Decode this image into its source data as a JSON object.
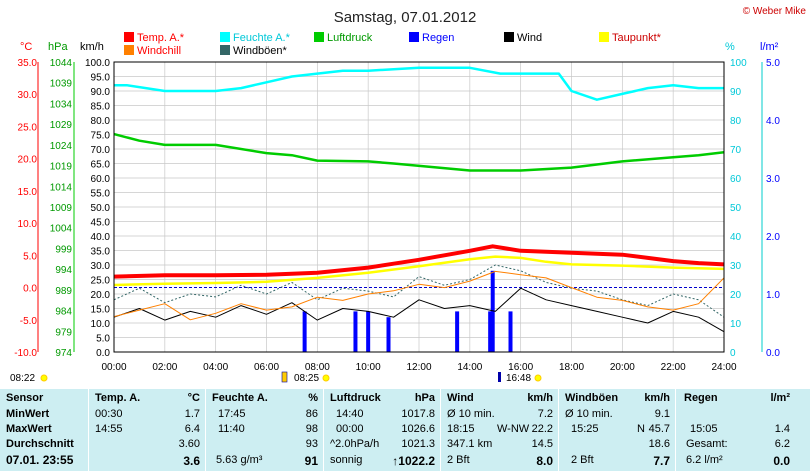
{
  "header": {
    "title": "Samstag, 07.01.2012",
    "credit": "© Weber Mike"
  },
  "colors": {
    "temp": "#ff0000",
    "humidity": "#00ffff",
    "pressure": "#00cc00",
    "rain": "#0000ff",
    "wind": "#000000",
    "dewpoint": "#ffff00",
    "windchill": "#ff8000",
    "gust": "#336666",
    "table_bg": "#cdeef2"
  },
  "axes_units": {
    "temp": "°C",
    "pressure": "hPa",
    "wind": "km/h",
    "humidity": "%",
    "rain": "l/m²"
  },
  "chart_data": {
    "type": "line",
    "title": "Samstag, 07.01.2012",
    "x_axis": {
      "ticks": [
        "00:00",
        "02:00",
        "04:00",
        "06:00",
        "08:00",
        "10:00",
        "12:00",
        "14:00",
        "16:00",
        "18:00",
        "20:00",
        "22:00",
        "24:00"
      ],
      "range_hours": [
        0,
        24
      ]
    },
    "y_axes": {
      "temp": {
        "label": "°C",
        "range": [
          -10,
          35
        ],
        "ticks": [
          "35.0",
          "30.0",
          "25.0",
          "20.0",
          "15.0",
          "10.0",
          "5.0",
          "0.0",
          "-5.0",
          "-10.0"
        ]
      },
      "pressure": {
        "label": "hPa",
        "range": [
          974,
          1044
        ],
        "ticks": [
          "1044",
          "1039",
          "1034",
          "1029",
          "1024",
          "1019",
          "1014",
          "1009",
          "1004",
          "999",
          "994",
          "989",
          "984",
          "979",
          "974"
        ]
      },
      "wind": {
        "label": "km/h",
        "range": [
          0,
          100
        ],
        "ticks": [
          "100.0",
          "95.0",
          "90.0",
          "85.0",
          "80.0",
          "75.0",
          "70.0",
          "65.0",
          "60.0",
          "55.0",
          "50.0",
          "45.0",
          "40.0",
          "35.0",
          "30.0",
          "25.0",
          "20.0",
          "15.0",
          "10.0",
          "5.0",
          "0.0"
        ]
      },
      "humidity": {
        "label": "%",
        "range": [
          0,
          100
        ],
        "ticks": [
          "100",
          "90",
          "80",
          "70",
          "60",
          "50",
          "40",
          "30",
          "20",
          "10",
          "0"
        ]
      },
      "rain": {
        "label": "l/m²",
        "range": [
          0,
          5
        ],
        "ticks": [
          "5.0",
          "4.0",
          "3.0",
          "2.0",
          "1.0",
          "0.0"
        ]
      }
    },
    "legend": [
      {
        "name": "Temp. A.*",
        "key": "temp"
      },
      {
        "name": "Feuchte A.*",
        "key": "humidity"
      },
      {
        "name": "Luftdruck",
        "key": "pressure"
      },
      {
        "name": "Regen",
        "key": "rain"
      },
      {
        "name": "Wind",
        "key": "wind"
      },
      {
        "name": "Taupunkt*",
        "key": "dewpoint"
      },
      {
        "name": "Windchill",
        "key": "windchill"
      },
      {
        "name": "Windböen*",
        "key": "gust"
      }
    ],
    "series": [
      {
        "name": "Temp. A.*",
        "axis": "temp",
        "x": [
          0,
          2,
          4,
          6,
          8,
          10,
          11,
          12,
          13,
          14,
          14.9,
          16,
          18,
          20,
          21,
          22,
          23,
          24
        ],
        "values": [
          1.7,
          1.9,
          1.9,
          2.0,
          2.3,
          3.1,
          3.7,
          4.3,
          5.0,
          5.7,
          6.4,
          5.7,
          5.4,
          5.1,
          4.6,
          4.1,
          3.8,
          3.6
        ]
      },
      {
        "name": "Feuchte A.*",
        "axis": "humidity",
        "x": [
          0,
          0.5,
          2,
          4,
          5,
          6,
          7,
          8,
          9,
          10,
          12,
          14,
          15.2,
          17.5,
          18,
          19,
          20,
          21,
          22,
          23,
          24
        ],
        "values": [
          92,
          92,
          90,
          90,
          91,
          93,
          95,
          96,
          97,
          97,
          98,
          98,
          96,
          96,
          90,
          87,
          89,
          91,
          92,
          91,
          91
        ]
      },
      {
        "name": "Luftdruck",
        "axis": "pressure",
        "x": [
          0,
          1,
          2,
          4,
          6,
          7,
          8,
          10,
          11,
          14,
          16,
          18,
          20,
          22,
          23,
          24
        ],
        "values": [
          1026.6,
          1025.0,
          1024.0,
          1024.0,
          1022.0,
          1021.5,
          1020.2,
          1020.0,
          1019.5,
          1017.8,
          1017.8,
          1018.5,
          1020.0,
          1021.0,
          1021.5,
          1022.2
        ]
      },
      {
        "name": "Taupunkt*",
        "axis": "temp",
        "x": [
          0,
          2,
          4,
          6,
          8,
          10,
          12,
          14,
          15,
          16,
          17,
          18,
          20,
          22,
          24
        ],
        "values": [
          0.4,
          0.6,
          0.7,
          0.9,
          1.5,
          2.3,
          3.3,
          4.4,
          4.8,
          4.6,
          4.0,
          3.6,
          3.4,
          3.1,
          2.9
        ]
      },
      {
        "name": "Wind",
        "axis": "wind",
        "x": [
          0,
          1,
          2,
          3,
          4,
          5,
          6,
          7,
          8,
          9,
          10,
          11,
          12,
          13,
          14,
          15,
          16,
          17,
          18,
          19,
          20,
          21,
          22,
          23,
          24
        ],
        "values": [
          12,
          15,
          11,
          14,
          12,
          16,
          13,
          17,
          11,
          15,
          14,
          12,
          18,
          15,
          16,
          14,
          22,
          18,
          16,
          14,
          12,
          10,
          14,
          12,
          7
        ]
      },
      {
        "name": "Windchill",
        "axis": "temp",
        "x": [
          0,
          1,
          2,
          3,
          4,
          5,
          6,
          7,
          8,
          9,
          10,
          11,
          12,
          13,
          14,
          15,
          16,
          17,
          18,
          19,
          20,
          21,
          22,
          23,
          24
        ],
        "values": [
          -4.5,
          -3.5,
          -2.5,
          -5.0,
          -4.0,
          -2.5,
          -3.5,
          -3.0,
          -1.5,
          -2.0,
          -1.0,
          -0.5,
          0.5,
          0.0,
          1.0,
          2.5,
          2.0,
          1.5,
          0.0,
          -1.5,
          -2.0,
          -3.0,
          -3.5,
          -2.5,
          1.5
        ]
      },
      {
        "name": "Windböen*",
        "axis": "wind",
        "x": [
          0,
          1,
          2,
          3,
          4,
          5,
          6,
          7,
          8,
          9,
          10,
          11,
          12,
          13,
          14,
          15,
          16,
          17,
          18,
          19,
          20,
          21,
          22,
          23,
          24
        ],
        "values": [
          18,
          22,
          17,
          20,
          19,
          23,
          20,
          24,
          18,
          22,
          21,
          19,
          26,
          23,
          25,
          30,
          28,
          24,
          22,
          21,
          18,
          16,
          20,
          18,
          12
        ]
      },
      {
        "name": "Regen",
        "axis": "rain",
        "type": "bar",
        "x": [
          7.5,
          9.5,
          10.0,
          10.8,
          13.5,
          14.8,
          14.9,
          15.6
        ],
        "values": [
          0.7,
          0.7,
          0.7,
          0.6,
          0.7,
          0.7,
          1.4,
          0.7
        ]
      }
    ]
  },
  "markers": {
    "sunrise": "08:22",
    "daylight_start": "08:25",
    "daylight_end": "16:48"
  },
  "table": {
    "row_labels": [
      "Sensor",
      "MinWert",
      "MaxWert",
      "Durchschnitt",
      "07.01. 23:55"
    ],
    "temp": {
      "header": "Temp. A.",
      "unit": "°C",
      "rows": [
        [
          "00:30",
          "1.7"
        ],
        [
          "14:55",
          "6.4"
        ],
        [
          "",
          "3.60"
        ],
        [
          "",
          "3.6"
        ]
      ]
    },
    "humidity": {
      "header": "Feuchte A.",
      "unit": "%",
      "rows": [
        [
          "17:45",
          "86"
        ],
        [
          "11:40",
          "98"
        ],
        [
          "",
          "93"
        ],
        [
          "5.63 g/m³",
          "91"
        ]
      ]
    },
    "pressure": {
      "header": "Luftdruck",
      "unit": "hPa",
      "rows": [
        [
          "14:40",
          "1017.8"
        ],
        [
          "00:00",
          "1026.6"
        ],
        [
          "^2.0hPa/h",
          "1021.3"
        ],
        [
          "sonnig",
          "↑1022.2"
        ]
      ]
    },
    "wind": {
      "header": "Wind",
      "unit": "km/h",
      "rows": [
        [
          "Ø 10 min.",
          "",
          "7.2"
        ],
        [
          "18:15",
          "W-NW",
          "22.2"
        ],
        [
          "347.1 km",
          "",
          "14.5"
        ],
        [
          "2 Bft",
          "",
          "8.0"
        ]
      ]
    },
    "gust": {
      "header": "Windböen",
      "unit": "km/h",
      "rows": [
        [
          "Ø 10 min.",
          "",
          "9.1"
        ],
        [
          "15:25",
          "N",
          "45.7"
        ],
        [
          "",
          "",
          "18.6"
        ],
        [
          "2 Bft",
          "",
          "7.7"
        ]
      ]
    },
    "rain": {
      "header": "Regen",
      "unit": "l/m²",
      "rows": [
        [
          "",
          ""
        ],
        [
          "15:05",
          "1.4"
        ],
        [
          "Gesamt:",
          "6.2"
        ],
        [
          "6.2 l/m²",
          "0.0"
        ]
      ]
    }
  }
}
